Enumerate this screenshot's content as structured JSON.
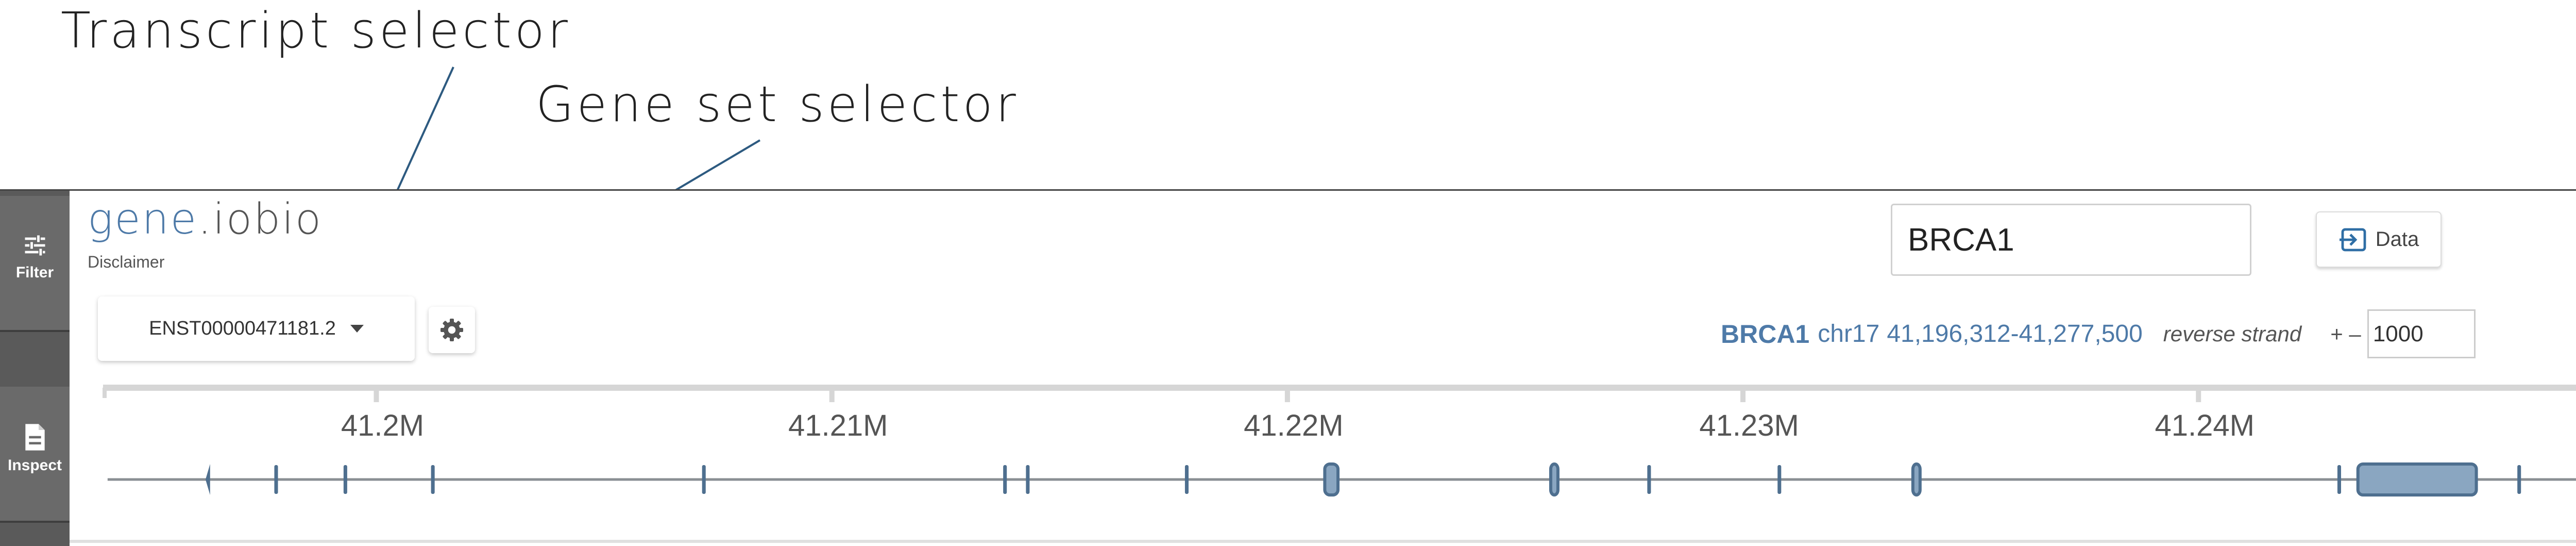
{
  "annotations": {
    "transcript_selector": "Transcript selector",
    "gene_set_selector": "Gene set selector"
  },
  "sidebar": {
    "items": [
      {
        "label": "Filter",
        "icon": "sliders-icon"
      },
      {
        "label": "Inspect",
        "icon": "document-icon"
      }
    ]
  },
  "header": {
    "logo_primary": "gene",
    "logo_secondary": ".iobio",
    "disclaimer": "Disclaimer",
    "gene_search_value": "BRCA1",
    "data_button_label": "Data",
    "transcript_selected": "ENST00000471181.2"
  },
  "gene_info": {
    "name": "BRCA1",
    "chromosome": "chr17",
    "coordinates": "41,196,312-41,277,500",
    "strand": "reverse strand",
    "flank_controls": "+ –",
    "flank_value": "1000"
  },
  "colors": {
    "accent": "#4e7aa8",
    "rail_background": "#5a5a5a",
    "exon_fill": "#8aa6c1",
    "exon_stroke": "#4e6f8f"
  },
  "chart_data": {
    "type": "gene-track",
    "axis": {
      "unit": "bp",
      "range": [
        41194000,
        41249000
      ],
      "ticks": [
        {
          "value": 41200000,
          "label": "41.2M"
        },
        {
          "value": 41210000,
          "label": "41.21M"
        },
        {
          "value": 41220000,
          "label": "41.22M"
        },
        {
          "value": 41230000,
          "label": "41.23M"
        },
        {
          "value": 41240000,
          "label": "41.24M"
        }
      ]
    },
    "transcript_line": [
      41194100,
      41249000
    ],
    "exons": [
      {
        "start": 41196250,
        "end": 41196350,
        "type": "arrow"
      },
      {
        "start": 41197760,
        "end": 41197840,
        "type": "thin"
      },
      {
        "start": 41199280,
        "end": 41199360,
        "type": "thin"
      },
      {
        "start": 41201200,
        "end": 41201280,
        "type": "thin"
      },
      {
        "start": 41207150,
        "end": 41207230,
        "type": "thin"
      },
      {
        "start": 41213760,
        "end": 41213840,
        "type": "thin"
      },
      {
        "start": 41214260,
        "end": 41214340,
        "type": "thin"
      },
      {
        "start": 41217750,
        "end": 41217830,
        "type": "thin"
      },
      {
        "start": 41220820,
        "end": 41221110,
        "type": "box"
      },
      {
        "start": 41225780,
        "end": 41225930,
        "type": "box"
      },
      {
        "start": 41227900,
        "end": 41227980,
        "type": "thin"
      },
      {
        "start": 41230760,
        "end": 41230840,
        "type": "thin"
      },
      {
        "start": 41233730,
        "end": 41233850,
        "type": "box"
      },
      {
        "start": 41243050,
        "end": 41243130,
        "type": "thin"
      },
      {
        "start": 41243500,
        "end": 41246100,
        "type": "box"
      },
      {
        "start": 41247000,
        "end": 41247080,
        "type": "thin"
      }
    ]
  }
}
